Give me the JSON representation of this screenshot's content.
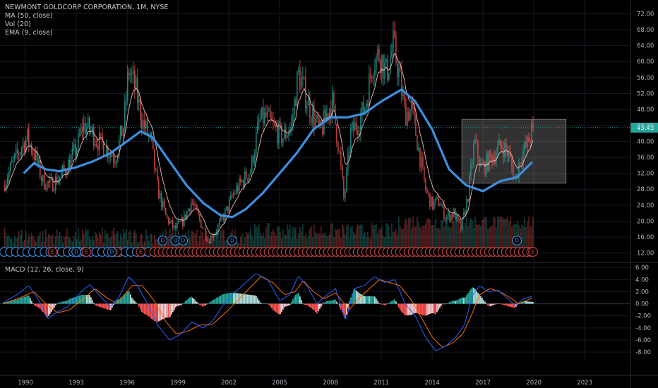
{
  "legend": {
    "symbol": "NEWMONT GOLDCORP CORPORATION, 1M, NYSE",
    "ma": "MA (50, close)",
    "vol": "Vol (20)",
    "ema": "EMA (9, close)"
  },
  "macd_legend": "MACD (12, 26, close, 9)",
  "last_price": "43.43",
  "colors": {
    "up": "#26a69a",
    "down": "#ef5350",
    "ma": "#3c8fe0",
    "ema": "#f0b6b6",
    "macd": "#2962ff",
    "signal": "#ff6d00",
    "price_line": "#26a69a",
    "box": "#808080"
  },
  "events": {
    "dividend_letter": "D",
    "earnings_letter": "E"
  },
  "chart_data": [
    {
      "type": "candlestick",
      "title": "NEWMONT GOLDCORP CORPORATION, 1M, NYSE",
      "x_ticks": [
        "1990",
        "1993",
        "1996",
        "1999",
        "2002",
        "2005",
        "2008",
        "2011",
        "2014",
        "2017",
        "2020",
        "2023"
      ],
      "x_range": [
        1988.5,
        2025.7
      ],
      "y_ticks": [
        12,
        16,
        20,
        24,
        28,
        32,
        36,
        40,
        44,
        48,
        52,
        56,
        60,
        64,
        68,
        72
      ],
      "y_range": [
        10,
        74
      ],
      "last_price": 43.43,
      "price_path": [
        [
          1988.7,
          29
        ],
        [
          1989.2,
          34
        ],
        [
          1989.7,
          38
        ],
        [
          1990.1,
          41
        ],
        [
          1990.6,
          36
        ],
        [
          1991.0,
          30
        ],
        [
          1991.5,
          29
        ],
        [
          1992.0,
          31
        ],
        [
          1992.5,
          34
        ],
        [
          1993.0,
          38
        ],
        [
          1993.4,
          44
        ],
        [
          1993.8,
          43
        ],
        [
          1994.3,
          40
        ],
        [
          1994.8,
          38
        ],
        [
          1995.3,
          36
        ],
        [
          1995.8,
          44
        ],
        [
          1996.1,
          58
        ],
        [
          1996.5,
          53
        ],
        [
          1996.9,
          45
        ],
        [
          1997.4,
          40
        ],
        [
          1997.8,
          28
        ],
        [
          1998.3,
          21
        ],
        [
          1998.8,
          18
        ],
        [
          1999.3,
          20
        ],
        [
          1999.8,
          25
        ],
        [
          2000.3,
          20
        ],
        [
          2000.8,
          15
        ],
        [
          2001.3,
          18
        ],
        [
          2001.8,
          22
        ],
        [
          2002.3,
          27
        ],
        [
          2002.8,
          30
        ],
        [
          2003.3,
          33
        ],
        [
          2003.8,
          45
        ],
        [
          2004.2,
          46
        ],
        [
          2004.7,
          43
        ],
        [
          2005.2,
          41
        ],
        [
          2005.7,
          44
        ],
        [
          2006.1,
          57
        ],
        [
          2006.5,
          52
        ],
        [
          2006.9,
          47
        ],
        [
          2007.4,
          42
        ],
        [
          2007.8,
          47
        ],
        [
          2008.1,
          50
        ],
        [
          2008.5,
          38
        ],
        [
          2008.8,
          25
        ],
        [
          2009.2,
          42
        ],
        [
          2009.7,
          45
        ],
        [
          2010.1,
          50
        ],
        [
          2010.5,
          60
        ],
        [
          2010.9,
          62
        ],
        [
          2011.3,
          57
        ],
        [
          2011.7,
          64
        ],
        [
          2012.0,
          58
        ],
        [
          2012.4,
          47
        ],
        [
          2012.8,
          48
        ],
        [
          2013.2,
          38
        ],
        [
          2013.6,
          28
        ],
        [
          2014.0,
          24
        ],
        [
          2014.4,
          25
        ],
        [
          2014.8,
          21
        ],
        [
          2015.3,
          22
        ],
        [
          2015.7,
          18
        ],
        [
          2016.1,
          26
        ],
        [
          2016.5,
          40
        ],
        [
          2016.9,
          33
        ],
        [
          2017.3,
          35
        ],
        [
          2017.7,
          37
        ],
        [
          2018.1,
          39
        ],
        [
          2018.5,
          37
        ],
        [
          2018.9,
          30
        ],
        [
          2019.2,
          36
        ],
        [
          2019.6,
          39
        ],
        [
          2019.95,
          43.43
        ]
      ]
    },
    {
      "type": "line",
      "title": "MA (50, close)",
      "points": [
        [
          1989.9,
          32
        ],
        [
          1990.5,
          34.5
        ],
        [
          1991.2,
          33
        ],
        [
          1992.0,
          32.5
        ],
        [
          1993.0,
          33.5
        ],
        [
          1994.0,
          35
        ],
        [
          1995.0,
          37
        ],
        [
          1996.0,
          40
        ],
        [
          1996.8,
          42.5
        ],
        [
          1997.5,
          41
        ],
        [
          1998.5,
          35
        ],
        [
          1999.5,
          29
        ],
        [
          2000.5,
          24.5
        ],
        [
          2001.5,
          21.5
        ],
        [
          2002.2,
          21
        ],
        [
          2003.0,
          23
        ],
        [
          2004.0,
          27
        ],
        [
          2005.0,
          32
        ],
        [
          2006.0,
          37
        ],
        [
          2007.0,
          43
        ],
        [
          2008.0,
          46
        ],
        [
          2009.0,
          46
        ],
        [
          2010.0,
          47
        ],
        [
          2011.0,
          50
        ],
        [
          2012.2,
          53
        ],
        [
          2013.0,
          50
        ],
        [
          2014.0,
          43
        ],
        [
          2015.0,
          33
        ],
        [
          2016.0,
          29
        ],
        [
          2017.0,
          27.5
        ],
        [
          2018.0,
          30
        ],
        [
          2019.0,
          31
        ],
        [
          2019.95,
          35
        ]
      ]
    },
    {
      "type": "line",
      "title": "MACD (12, 26, close, 9)",
      "y_ticks": [
        -8.0,
        -6.0,
        -4.0,
        -2.0,
        0.0,
        2.0,
        4.0,
        6.0
      ],
      "y_range": [
        -9.5,
        6.6
      ],
      "macd": [
        [
          1988.7,
          0.2
        ],
        [
          1989.5,
          1.5
        ],
        [
          1990.2,
          3.0
        ],
        [
          1990.8,
          0.5
        ],
        [
          1991.3,
          -2.5
        ],
        [
          1991.8,
          -1.5
        ],
        [
          1992.5,
          -0.5
        ],
        [
          1993.3,
          2.0
        ],
        [
          1993.8,
          3.2
        ],
        [
          1994.5,
          1.0
        ],
        [
          1995.0,
          -0.5
        ],
        [
          1995.5,
          1.0
        ],
        [
          1996.1,
          4.5
        ],
        [
          1996.6,
          3.0
        ],
        [
          1997.2,
          0.0
        ],
        [
          1997.8,
          -3.5
        ],
        [
          1998.5,
          -6.0
        ],
        [
          1999.2,
          -5.0
        ],
        [
          1999.8,
          -3.0
        ],
        [
          2000.5,
          -4.0
        ],
        [
          2001.0,
          -3.0
        ],
        [
          2001.6,
          -0.5
        ],
        [
          2002.2,
          1.5
        ],
        [
          2002.8,
          3.0
        ],
        [
          2003.6,
          5.0
        ],
        [
          2004.3,
          4.0
        ],
        [
          2005.0,
          0.5
        ],
        [
          2005.6,
          1.5
        ],
        [
          2006.1,
          4.6
        ],
        [
          2006.6,
          3.0
        ],
        [
          2007.2,
          0.0
        ],
        [
          2007.8,
          1.5
        ],
        [
          2008.3,
          2.5
        ],
        [
          2008.9,
          -2.8
        ],
        [
          2009.4,
          2.5
        ],
        [
          2010.0,
          3.0
        ],
        [
          2010.6,
          4.5
        ],
        [
          2011.2,
          3.5
        ],
        [
          2011.8,
          4.0
        ],
        [
          2012.4,
          0.0
        ],
        [
          2013.0,
          -2.0
        ],
        [
          2013.6,
          -5.5
        ],
        [
          2014.2,
          -7.8
        ],
        [
          2014.8,
          -7.0
        ],
        [
          2015.4,
          -5.5
        ],
        [
          2015.9,
          -3.5
        ],
        [
          2016.4,
          1.5
        ],
        [
          2016.8,
          3.0
        ],
        [
          2017.3,
          2.0
        ],
        [
          2017.9,
          2.2
        ],
        [
          2018.4,
          1.0
        ],
        [
          2018.9,
          -0.3
        ],
        [
          2019.4,
          0.8
        ],
        [
          2019.95,
          1.3
        ]
      ],
      "signal": [
        [
          1988.7,
          0.0
        ],
        [
          1989.7,
          1.0
        ],
        [
          1990.5,
          2.0
        ],
        [
          1991.2,
          0.0
        ],
        [
          1991.9,
          -1.5
        ],
        [
          1992.6,
          -1.0
        ],
        [
          1993.5,
          1.0
        ],
        [
          1994.1,
          2.5
        ],
        [
          1994.8,
          1.0
        ],
        [
          1995.4,
          0.0
        ],
        [
          1996.3,
          3.0
        ],
        [
          1996.9,
          3.0
        ],
        [
          1997.6,
          0.5
        ],
        [
          1998.3,
          -3.0
        ],
        [
          1998.9,
          -5.0
        ],
        [
          1999.6,
          -4.5
        ],
        [
          2000.3,
          -3.5
        ],
        [
          2001.0,
          -3.5
        ],
        [
          2001.8,
          -1.5
        ],
        [
          2002.5,
          0.5
        ],
        [
          2003.2,
          2.5
        ],
        [
          2003.9,
          4.5
        ],
        [
          2004.6,
          3.5
        ],
        [
          2005.3,
          1.5
        ],
        [
          2005.9,
          2.0
        ],
        [
          2006.4,
          3.8
        ],
        [
          2007.0,
          2.0
        ],
        [
          2007.6,
          0.8
        ],
        [
          2008.3,
          1.8
        ],
        [
          2009.1,
          -1.0
        ],
        [
          2009.7,
          1.0
        ],
        [
          2010.3,
          2.5
        ],
        [
          2010.9,
          4.0
        ],
        [
          2011.5,
          3.5
        ],
        [
          2012.1,
          3.0
        ],
        [
          2012.8,
          0.5
        ],
        [
          2013.4,
          -2.5
        ],
        [
          2014.0,
          -5.5
        ],
        [
          2014.6,
          -7.2
        ],
        [
          2015.2,
          -6.5
        ],
        [
          2015.8,
          -5.0
        ],
        [
          2016.3,
          -2.0
        ],
        [
          2016.8,
          1.5
        ],
        [
          2017.4,
          2.5
        ],
        [
          2018.0,
          2.0
        ],
        [
          2018.6,
          1.0
        ],
        [
          2019.1,
          0.0
        ],
        [
          2019.95,
          1.0
        ]
      ]
    }
  ]
}
